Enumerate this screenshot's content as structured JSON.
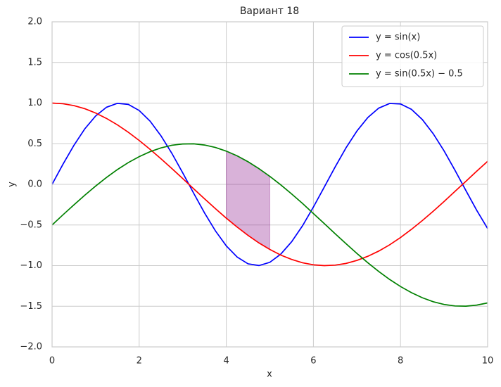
{
  "chart_data": {
    "type": "line",
    "title": "Вариант 18",
    "xlabel": "x",
    "ylabel": "y",
    "x": [
      0,
      0.25,
      0.5,
      0.75,
      1,
      1.25,
      1.5,
      1.75,
      2,
      2.25,
      2.5,
      2.75,
      3,
      3.25,
      3.5,
      3.75,
      4,
      4.25,
      4.5,
      4.75,
      5,
      5.25,
      5.5,
      5.75,
      6,
      6.25,
      6.5,
      6.75,
      7,
      7.25,
      7.5,
      7.75,
      8,
      8.25,
      8.5,
      8.75,
      9,
      9.25,
      9.5,
      9.75,
      10
    ],
    "series": [
      {
        "name": "y = sin(x)",
        "color": "#0000ff",
        "values": [
          0,
          0.247,
          0.479,
          0.682,
          0.841,
          0.949,
          0.997,
          0.984,
          0.909,
          0.778,
          0.598,
          0.382,
          0.141,
          -0.108,
          -0.351,
          -0.572,
          -0.757,
          -0.895,
          -0.978,
          -0.999,
          -0.959,
          -0.859,
          -0.706,
          -0.51,
          -0.279,
          -0.033,
          0.215,
          0.451,
          0.657,
          0.823,
          0.938,
          0.995,
          0.989,
          0.923,
          0.798,
          0.624,
          0.412,
          0.174,
          -0.075,
          -0.32,
          -0.544
        ]
      },
      {
        "name": "y = cos(0.5x)",
        "color": "#ff0000",
        "values": [
          1,
          0.992,
          0.969,
          0.931,
          0.878,
          0.811,
          0.732,
          0.641,
          0.54,
          0.431,
          0.315,
          0.195,
          0.071,
          -0.054,
          -0.178,
          -0.299,
          -0.416,
          -0.526,
          -0.628,
          -0.721,
          -0.801,
          -0.87,
          -0.924,
          -0.965,
          -0.99,
          -1,
          -0.994,
          -0.973,
          -0.936,
          -0.885,
          -0.821,
          -0.744,
          -0.654,
          -0.554,
          -0.446,
          -0.331,
          -0.211,
          -0.087,
          0.037,
          0.162,
          0.284
        ]
      },
      {
        "name": "y = sin(0.5x) − 0.5",
        "color": "#008000",
        "values": [
          -0.5,
          -0.375,
          -0.253,
          -0.134,
          -0.021,
          0.085,
          0.182,
          0.268,
          0.341,
          0.402,
          0.449,
          0.481,
          0.497,
          0.499,
          0.484,
          0.454,
          0.409,
          0.351,
          0.278,
          0.193,
          0.098,
          -0.006,
          -0.118,
          -0.235,
          -0.359,
          -0.483,
          -0.608,
          -0.731,
          -0.851,
          -0.965,
          -1.072,
          -1.17,
          -1.257,
          -1.332,
          -1.395,
          -1.444,
          -1.478,
          -1.496,
          -1.499,
          -1.486,
          -1.459
        ]
      }
    ],
    "fill": {
      "x": [
        4,
        4.25,
        4.5,
        4.75,
        5
      ],
      "y1": [
        0.409,
        0.351,
        0.278,
        0.193,
        0.098
      ],
      "y2": [
        -0.416,
        -0.526,
        -0.628,
        -0.721,
        -0.801
      ],
      "color": "#800080",
      "alpha": 0.3
    },
    "xlim": [
      0,
      10
    ],
    "xticks": [
      0,
      2,
      4,
      6,
      8,
      10
    ],
    "ylim": [
      -2,
      2
    ],
    "yticks": [
      {
        "value": -2,
        "label": "−2.0"
      },
      {
        "value": -1.5,
        "label": "−1.5"
      },
      {
        "value": -1,
        "label": "−1.0"
      },
      {
        "value": -0.5,
        "label": "−0.5"
      },
      {
        "value": 0,
        "label": "0.0"
      },
      {
        "value": 0.5,
        "label": "0.5"
      },
      {
        "value": 1,
        "label": "1.0"
      },
      {
        "value": 1.5,
        "label": "1.5"
      },
      {
        "value": 2,
        "label": "2.0"
      }
    ],
    "grid": true,
    "legend": "upper right"
  }
}
